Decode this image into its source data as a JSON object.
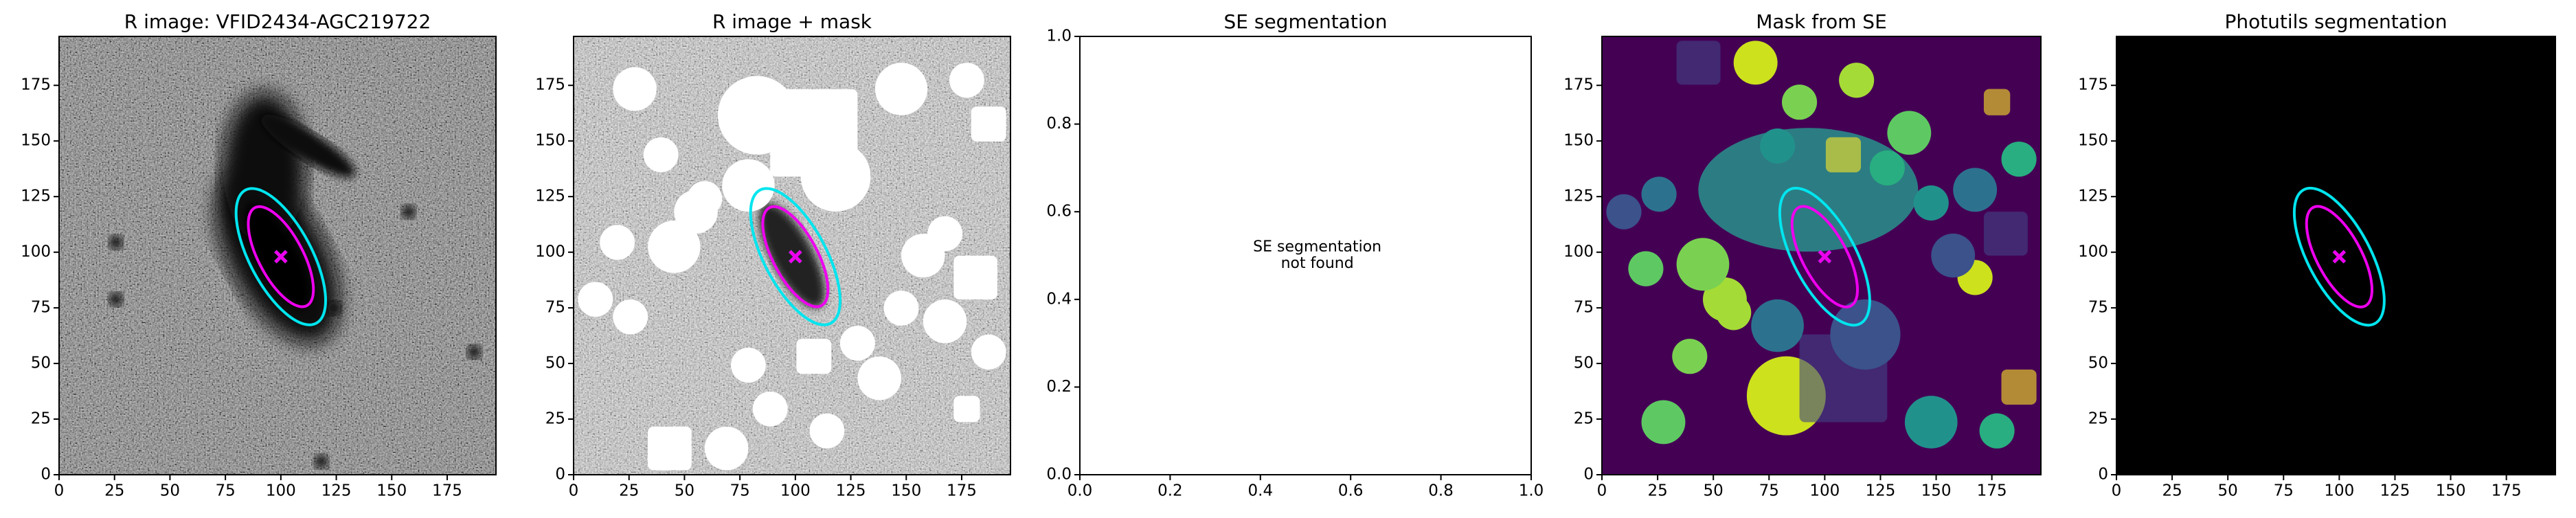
{
  "chart_data": [
    {
      "type": "image",
      "title": "R image: VFID2434-AGC219722",
      "xlim": [
        0,
        197
      ],
      "ylim": [
        0,
        197
      ],
      "xticks": [
        0,
        25,
        50,
        75,
        100,
        125,
        150,
        175
      ],
      "yticks": [
        0,
        25,
        50,
        75,
        100,
        125,
        150,
        175
      ],
      "ellipses": [
        {
          "center": [
            100,
            98
          ],
          "semi_axes": [
            34,
            14
          ],
          "angle": -62,
          "color": "#00e5ee"
        },
        {
          "center": [
            100,
            98
          ],
          "semi_axes": [
            25,
            10
          ],
          "angle": -62,
          "color": "#ee00ee"
        }
      ]
    },
    {
      "type": "image",
      "title": "R image + mask",
      "xlim": [
        0,
        197
      ],
      "ylim": [
        0,
        197
      ],
      "xticks": [
        0,
        25,
        50,
        75,
        100,
        125,
        150,
        175
      ],
      "yticks": [
        0,
        25,
        50,
        75,
        100,
        125,
        150,
        175
      ],
      "ellipses": [
        {
          "center": [
            100,
            98
          ],
          "semi_axes": [
            34,
            14
          ],
          "angle": -62,
          "color": "#00e5ee"
        },
        {
          "center": [
            100,
            98
          ],
          "semi_axes": [
            25,
            10
          ],
          "angle": -62,
          "color": "#ee00ee"
        }
      ]
    },
    {
      "type": "plot",
      "title": "SE segmentation",
      "annotation": "SE segmentation\nnot found",
      "annotation_position": [
        0.45,
        0.5
      ],
      "xlim": [
        0,
        1
      ],
      "ylim": [
        0,
        1
      ],
      "xticks": [
        {
          "value": 0,
          "label": "0.0"
        },
        0.2,
        0.4,
        0.6,
        0.8,
        {
          "value": 1,
          "label": "1.0"
        }
      ],
      "yticks": [
        {
          "value": 0,
          "label": "0.0"
        },
        0.2,
        0.4,
        0.6,
        0.8,
        {
          "value": 1,
          "label": "1.0"
        }
      ]
    },
    {
      "type": "image",
      "title": "Mask from SE",
      "xlim": [
        0,
        197
      ],
      "ylim": [
        0,
        197
      ],
      "xticks": [
        0,
        25,
        50,
        75,
        100,
        125,
        150,
        175
      ],
      "yticks": [
        0,
        25,
        50,
        75,
        100,
        125,
        150,
        175
      ],
      "ellipses": [
        {
          "center": [
            100,
            98
          ],
          "semi_axes": [
            34,
            14
          ],
          "angle": -62,
          "color": "#00e5ee"
        },
        {
          "center": [
            100,
            98
          ],
          "semi_axes": [
            25,
            10
          ],
          "angle": -62,
          "color": "#ee00ee"
        }
      ]
    },
    {
      "type": "image",
      "title": "Photutils segmentation",
      "xlim": [
        0,
        197
      ],
      "ylim": [
        0,
        197
      ],
      "xticks": [
        0,
        25,
        50,
        75,
        100,
        125,
        150,
        175
      ],
      "yticks": [
        0,
        25,
        50,
        75,
        100,
        125,
        150,
        175
      ],
      "ellipses": [
        {
          "center": [
            100,
            98
          ],
          "semi_axes": [
            34,
            14
          ],
          "angle": -62,
          "color": "#00e5ee"
        },
        {
          "center": [
            100,
            98
          ],
          "semi_axes": [
            25,
            10
          ],
          "angle": -62,
          "color": "#ee00ee"
        }
      ]
    }
  ]
}
